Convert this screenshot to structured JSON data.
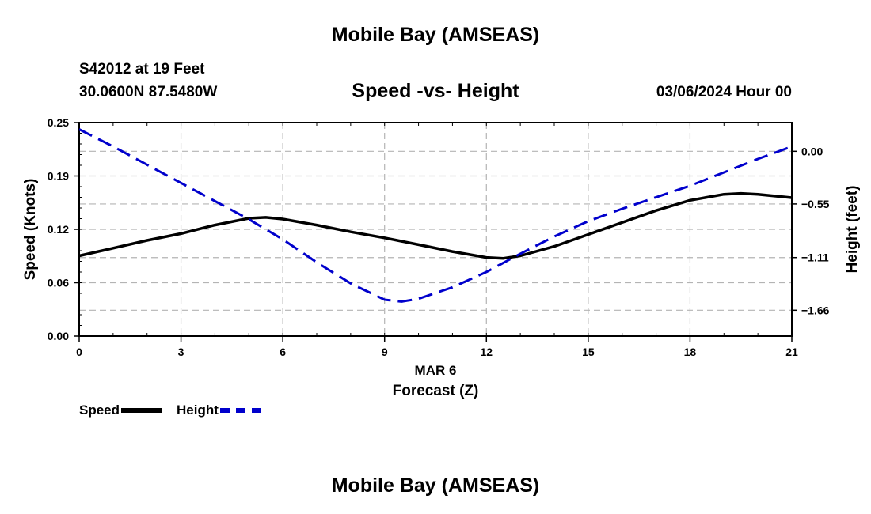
{
  "header": {
    "title": "Mobile Bay (AMSEAS)",
    "station": "S42012 at 19 Feet",
    "coords": "30.0600N  87.5480W",
    "subtitle": "Speed -vs- Height",
    "datetime": "03/06/2024 Hour 00"
  },
  "footer": {
    "title": "Mobile Bay (AMSEAS)"
  },
  "legend": {
    "speed": "Speed",
    "height": "Height"
  },
  "colors": {
    "speed": "#000000",
    "height": "#0000cc",
    "grid": "#b4b4b4"
  },
  "chart_data": {
    "type": "line",
    "title": "Speed -vs- Height",
    "xlabel": "Forecast (Z)",
    "xsublabel": "MAR 6",
    "ylabel": "Speed (Knots)",
    "y2label": "Height (feet)",
    "grid": true,
    "legend_position": "bottom-left",
    "x_ticks": [
      0,
      3,
      6,
      9,
      12,
      15,
      18,
      21
    ],
    "x_tick_labels": [
      "0",
      "3",
      "6",
      "9",
      "12",
      "15",
      "18",
      "21"
    ],
    "xlim": [
      0,
      21
    ],
    "y_ticks": [
      0,
      0.0625,
      0.125,
      0.1875,
      0.25
    ],
    "y_tick_labels": [
      "0.00",
      "0.06",
      "0.12",
      "0.19",
      "0.25"
    ],
    "ylim": [
      0,
      0.25
    ],
    "y2_ticks": [
      0.0,
      -0.55,
      -1.11,
      -1.66
    ],
    "y2_tick_labels": [
      "0.00",
      "−0.55",
      "−1.11",
      "−1.66"
    ],
    "y2lim": [
      -1.93,
      0.3
    ],
    "series": [
      {
        "name": "Speed",
        "axis": "left",
        "style": "solid",
        "x": [
          0,
          1,
          2,
          3,
          4,
          5,
          5.5,
          6,
          7,
          8,
          9,
          10,
          11,
          12,
          12.5,
          13,
          14,
          15,
          16,
          17,
          18,
          19,
          19.5,
          20,
          21
        ],
        "values": [
          0.094,
          0.103,
          0.112,
          0.12,
          0.13,
          0.138,
          0.139,
          0.137,
          0.13,
          0.122,
          0.115,
          0.107,
          0.099,
          0.092,
          0.091,
          0.094,
          0.105,
          0.119,
          0.133,
          0.147,
          0.159,
          0.166,
          0.167,
          0.166,
          0.162
        ]
      },
      {
        "name": "Height",
        "axis": "right",
        "style": "dashed",
        "x": [
          0,
          1,
          2,
          3,
          4,
          5,
          6,
          7,
          8,
          9,
          9.5,
          10,
          11,
          12,
          13,
          14,
          15,
          16,
          17,
          18,
          19,
          20,
          21
        ],
        "values": [
          0.23,
          0.05,
          -0.14,
          -0.33,
          -0.52,
          -0.71,
          -0.92,
          -1.16,
          -1.38,
          -1.55,
          -1.57,
          -1.54,
          -1.42,
          -1.26,
          -1.07,
          -0.89,
          -0.73,
          -0.6,
          -0.48,
          -0.36,
          -0.22,
          -0.08,
          0.05
        ]
      }
    ]
  }
}
